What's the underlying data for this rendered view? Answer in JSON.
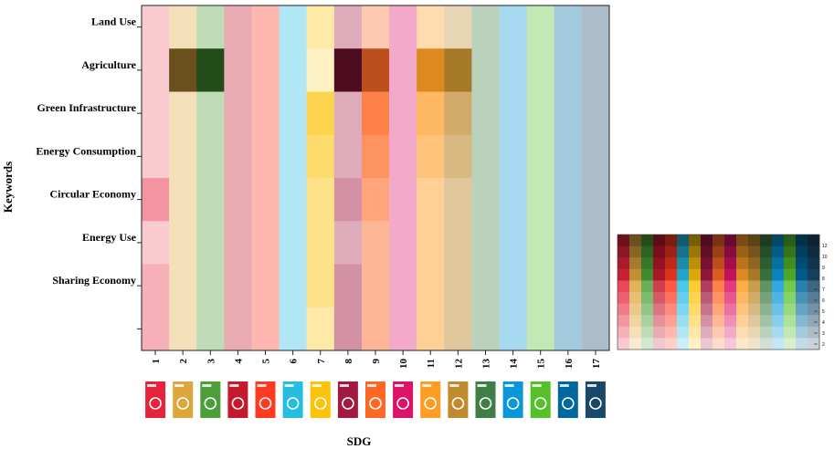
{
  "chart_data": {
    "type": "heatmap",
    "xlabel": "SDG",
    "ylabel": "Keywords",
    "columns": [
      "1",
      "2",
      "3",
      "4",
      "5",
      "6",
      "7",
      "8",
      "9",
      "10",
      "11",
      "12",
      "13",
      "14",
      "15",
      "16",
      "17"
    ],
    "rows": [
      "Land Use",
      "Agriculture",
      "Green Infrastructure",
      "Energy Consumption",
      "Circular Economy",
      "Energy Use",
      "Sharing Economy",
      ""
    ],
    "values": [
      [
        1,
        2,
        2,
        2,
        2,
        2,
        2,
        2,
        2,
        2,
        2,
        2,
        2,
        2,
        2,
        2,
        2
      ],
      [
        1,
        10,
        10,
        2,
        2,
        2,
        1,
        10,
        8,
        2,
        7,
        7,
        2,
        2,
        2,
        2,
        2
      ],
      [
        1,
        2,
        2,
        2,
        2,
        2,
        5,
        2,
        6,
        2,
        5,
        5,
        2,
        2,
        2,
        2,
        2
      ],
      [
        1,
        2,
        2,
        2,
        2,
        2,
        4,
        2,
        5,
        2,
        4,
        4,
        2,
        2,
        2,
        2,
        2
      ],
      [
        3,
        2,
        2,
        2,
        2,
        2,
        3,
        3,
        4,
        2,
        3,
        3,
        2,
        2,
        2,
        2,
        2
      ],
      [
        1,
        2,
        2,
        2,
        2,
        2,
        3,
        2,
        3,
        2,
        3,
        3,
        2,
        2,
        2,
        2,
        2
      ],
      [
        2,
        2,
        2,
        2,
        2,
        2,
        3,
        3,
        3,
        2,
        3,
        3,
        2,
        2,
        2,
        2,
        2
      ],
      [
        2,
        2,
        2,
        2,
        2,
        2,
        2,
        3,
        3,
        2,
        3,
        3,
        2,
        2,
        2,
        2,
        2
      ]
    ],
    "sdg_colors": [
      "#e5243b",
      "#dda63a",
      "#4c9f38",
      "#c5192d",
      "#ff3a21",
      "#26bde2",
      "#fcc30b",
      "#a21942",
      "#fd6925",
      "#dd1367",
      "#fd9d24",
      "#bf8b2e",
      "#3f7e44",
      "#0a97d9",
      "#56c02b",
      "#00689d",
      "#19486a"
    ],
    "legend_ticks": [
      "12",
      "10",
      "9",
      "8",
      "7",
      "6",
      "5",
      "4",
      "3",
      "2"
    ],
    "legend_levels": 10
  }
}
